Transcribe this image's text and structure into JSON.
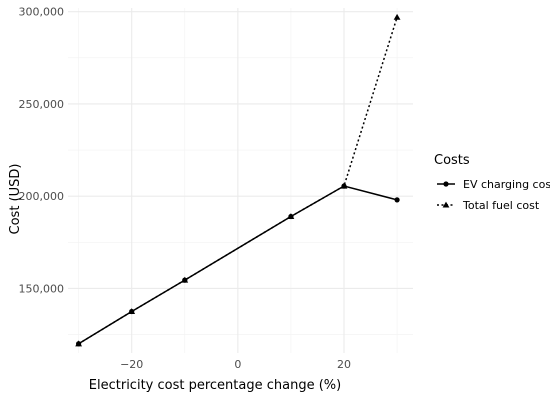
{
  "chart_data": {
    "type": "line",
    "xlabel": "Electricity cost percentage change (%)",
    "ylabel": "Cost (USD)",
    "xlim": [
      -32,
      33
    ],
    "ylim": [
      115000,
      302000
    ],
    "x_ticks": [
      -20,
      0,
      20
    ],
    "x_tick_labels": [
      "−20",
      "0",
      "20"
    ],
    "y_ticks": [
      150000,
      200000,
      250000,
      300000
    ],
    "y_tick_labels": [
      "150,000",
      "200,000",
      "250,000",
      "300,000"
    ],
    "grid": true,
    "legend": {
      "title": "Costs",
      "position": "right",
      "entries": [
        "EV charging cost",
        "Total fuel cost"
      ]
    },
    "series": [
      {
        "name": "EV charging cost",
        "marker": "circle",
        "line_style": "solid",
        "color": "#000000",
        "x": [
          -30,
          -20,
          -10,
          10,
          20,
          30
        ],
        "y": [
          120000,
          137500,
          154500,
          189000,
          205500,
          198000
        ]
      },
      {
        "name": "Total fuel cost",
        "marker": "triangle",
        "line_style": "dotted",
        "color": "#000000",
        "x": [
          -30,
          -20,
          -10,
          10,
          20,
          30
        ],
        "y": [
          120000,
          137500,
          154500,
          189000,
          205500,
          297000
        ]
      }
    ]
  }
}
